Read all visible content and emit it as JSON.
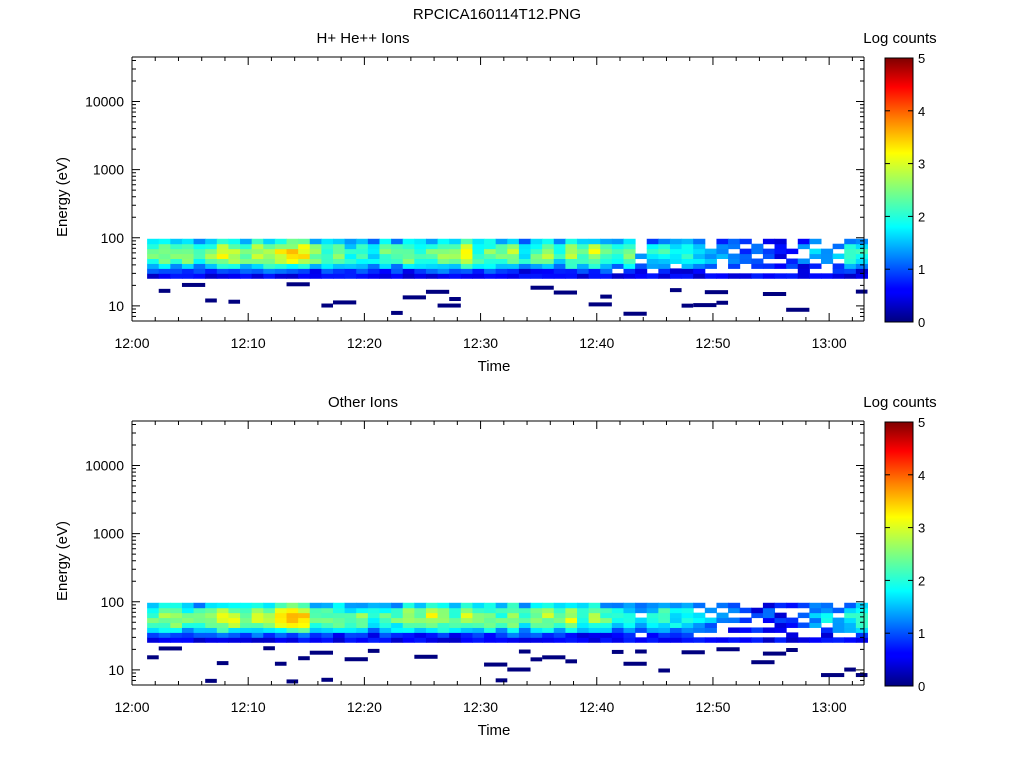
{
  "page_title": "RPCICA160114T12.PNG",
  "colors": {
    "colormap": [
      "#00007f",
      "#0000ff",
      "#007fff",
      "#00ffff",
      "#7fff7f",
      "#ffff00",
      "#ff7f00",
      "#ff0000",
      "#7f0000"
    ]
  },
  "chart_data": [
    {
      "type": "heatmap",
      "title": "H+ He++ Ions",
      "xlabel": "Time",
      "ylabel": "Energy (eV)",
      "x_ticks": [
        "12:00",
        "12:10",
        "12:20",
        "12:30",
        "12:40",
        "12:50",
        "13:00"
      ],
      "xlim": [
        "12:00",
        "13:03"
      ],
      "y_scale": "log",
      "y_ticks": [
        "10",
        "100",
        "1000",
        "10000"
      ],
      "ylim": [
        6,
        45000
      ],
      "colorbar": {
        "label": "Log counts",
        "range": [
          0,
          5
        ],
        "ticks": [
          "0",
          "1",
          "2",
          "3",
          "4",
          "5"
        ]
      },
      "energy_band_eV": [
        25,
        95
      ],
      "time_step_min": 1,
      "time_start_min": 1.3,
      "z_core": [
        2.4,
        2.6,
        2.3,
        2.7,
        2.2,
        2.5,
        3.0,
        2.8,
        2.6,
        2.9,
        3.0,
        3.1,
        3.3,
        3.4,
        2.6,
        2.2,
        2.5,
        2.0,
        2.3,
        1.9,
        2.4,
        2.2,
        2.6,
        2.3,
        2.5,
        2.9,
        2.4,
        3.1,
        2.2,
        2.5,
        2.3,
        2.7,
        2.0,
        2.4,
        2.6,
        2.1,
        2.8,
        2.2,
        2.9,
        2.5,
        2.0,
        2.3,
        1.6,
        1.8,
        2.1,
        1.6,
        1.9,
        1.7,
        1.4,
        1.5,
        1.2,
        0.9,
        1.0,
        0.8,
        0.7,
        0.9,
        1.1,
        1.5,
        1.3,
        1.6,
        2.0,
        2.2
      ]
    },
    {
      "type": "heatmap",
      "title": "Other Ions",
      "xlabel": "Time",
      "ylabel": "Energy (eV)",
      "x_ticks": [
        "12:00",
        "12:10",
        "12:20",
        "12:30",
        "12:40",
        "12:50",
        "13:00"
      ],
      "xlim": [
        "12:00",
        "13:03"
      ],
      "y_scale": "log",
      "y_ticks": [
        "10",
        "100",
        "1000",
        "10000"
      ],
      "ylim": [
        6,
        45000
      ],
      "colorbar": {
        "label": "Log counts",
        "range": [
          0,
          5
        ],
        "ticks": [
          "0",
          "1",
          "2",
          "3",
          "4",
          "5"
        ]
      },
      "energy_band_eV": [
        25,
        95
      ],
      "time_step_min": 1,
      "time_start_min": 1.3,
      "z_core": [
        2.3,
        2.5,
        2.7,
        2.4,
        2.2,
        2.8,
        3.1,
        2.9,
        2.7,
        2.9,
        3.0,
        3.2,
        3.5,
        3.4,
        2.5,
        2.3,
        2.6,
        2.2,
        2.5,
        2.1,
        2.4,
        2.3,
        2.7,
        2.6,
        3.0,
        2.7,
        2.3,
        2.8,
        2.4,
        2.6,
        2.3,
        2.8,
        2.1,
        2.5,
        2.7,
        2.2,
        2.9,
        2.3,
        2.6,
        2.2,
        1.9,
        2.1,
        1.7,
        2.0,
        2.2,
        1.8,
        2.0,
        1.6,
        1.4,
        1.3,
        1.1,
        0.9,
        0.8,
        0.9,
        0.7,
        0.8,
        1.2,
        1.4,
        1.6,
        1.5,
        1.9,
        2.3
      ]
    }
  ]
}
